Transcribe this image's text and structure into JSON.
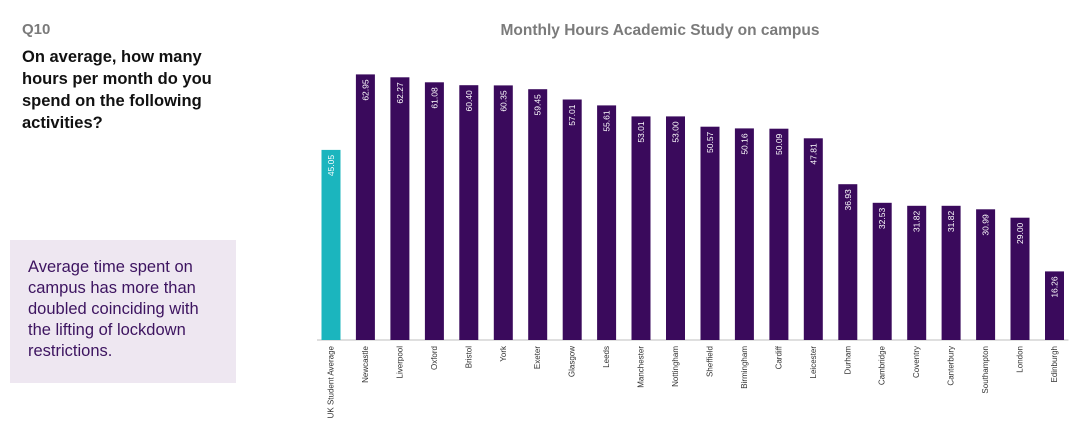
{
  "question": {
    "number": "Q10",
    "text": "On average, how many hours per month do you spend on the following activities?"
  },
  "note": {
    "text": "Average time spent on campus has more than doubled coinciding with the lifting of lockdown restrictions."
  },
  "colors": {
    "highlight": "#1bb5be",
    "bar": "#3a0a5c",
    "note_bg": "#eee7f1",
    "note_text": "#3d1460"
  },
  "chart_data": {
    "type": "bar",
    "title": "Monthly Hours Academic Study on campus",
    "xlabel": "",
    "ylabel": "",
    "ylim": [
      0,
      64
    ],
    "grid": false,
    "highlight_index": 0,
    "categories": [
      "UK Student Average",
      "Newcastle",
      "Liverpool",
      "Oxford",
      "Bristol",
      "York",
      "Exeter",
      "Glasgow",
      "Leeds",
      "Manchester",
      "Nottingham",
      "Sheffield",
      "Birmingham",
      "Cardiff",
      "Leicester",
      "Durham",
      "Cambridge",
      "Coventry",
      "Canterbury",
      "Southampton",
      "London",
      "Edinburgh"
    ],
    "values": [
      45.05,
      62.95,
      62.27,
      61.08,
      60.4,
      60.35,
      59.45,
      57.01,
      55.61,
      53.01,
      53.0,
      50.57,
      50.16,
      50.09,
      47.81,
      36.93,
      32.53,
      31.82,
      31.82,
      30.99,
      29.0,
      16.26
    ],
    "value_labels": [
      "45.05",
      "62.95",
      "62.27",
      "61.08",
      "60.40",
      "60.35",
      "59.45",
      "57.01",
      "55.61",
      "53.01",
      "53.00",
      "50.57",
      "50.16",
      "50.09",
      "47.81",
      "36.93",
      "32.53",
      "31.82",
      "31.82",
      "30.99",
      "29.00",
      "16.26"
    ]
  }
}
